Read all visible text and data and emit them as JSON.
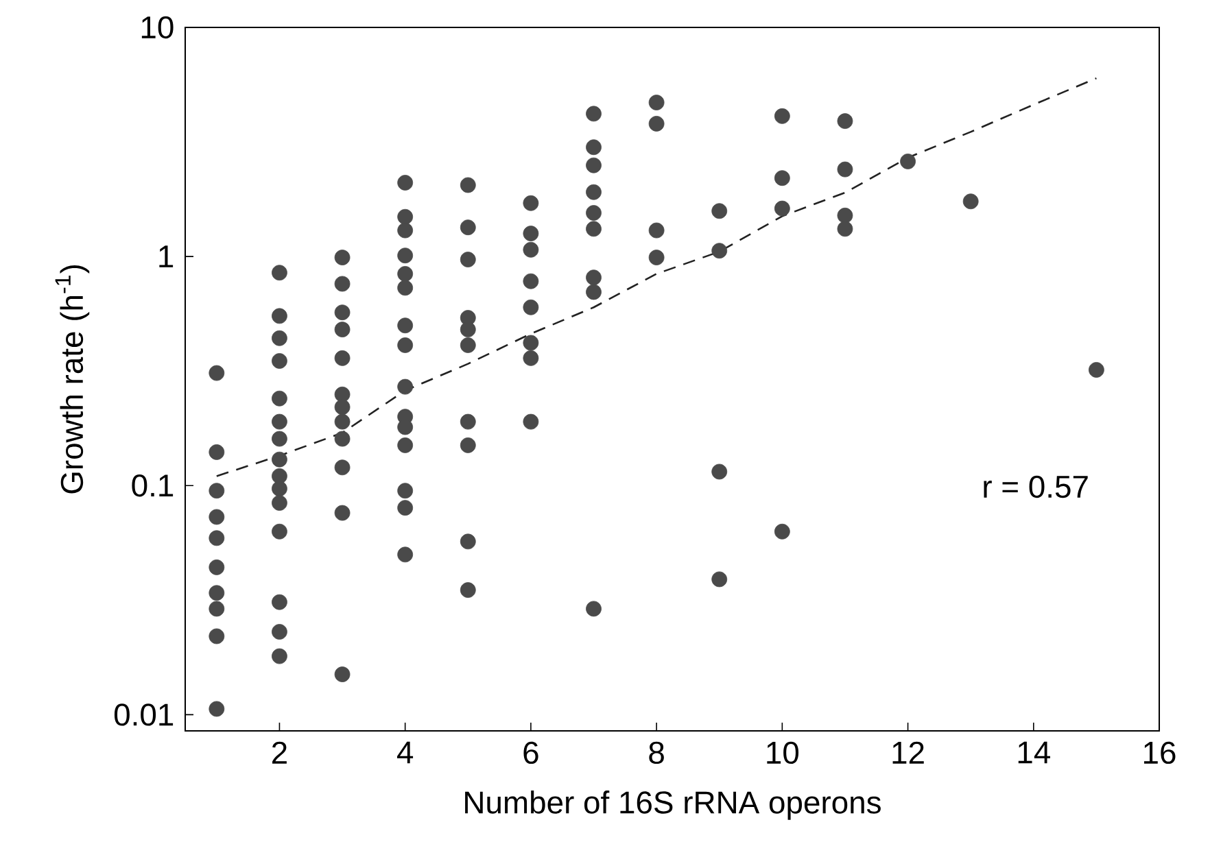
{
  "chart_data": {
    "type": "scatter",
    "xlabel": "Number of 16S rRNA operons",
    "ylabel": "Growth rate (h$^{-1}$)",
    "annotations": [
      "r = 0.57"
    ],
    "xlim": [
      0.5,
      16
    ],
    "ylim": [
      0.0085,
      10
    ],
    "xticks": [
      2,
      4,
      6,
      8,
      10,
      12,
      14,
      16
    ],
    "yticks": [
      0.01,
      0.1,
      1,
      10
    ],
    "log": "y",
    "grid": false,
    "series": [
      {
        "color": "#4a4a4a",
        "marker": "circle",
        "x": [
          1,
          1,
          1,
          1,
          1,
          1,
          1,
          1,
          1,
          1,
          2,
          2,
          2,
          2,
          2,
          2,
          2,
          2,
          2,
          2,
          2,
          2,
          2,
          2,
          2,
          3,
          3,
          3,
          3,
          3,
          3,
          3,
          3,
          3,
          3,
          3,
          3,
          4,
          4,
          4,
          4,
          4,
          4,
          4,
          4,
          4,
          4,
          4,
          4,
          4,
          4,
          4,
          5,
          5,
          5,
          5,
          5,
          5,
          5,
          5,
          5,
          5,
          6,
          6,
          6,
          6,
          6,
          6,
          6,
          6,
          7,
          7,
          7,
          7,
          7,
          7,
          7,
          7,
          7,
          8,
          8,
          8,
          8,
          9,
          9,
          9,
          9,
          10,
          10,
          10,
          10,
          11,
          11,
          11,
          11,
          12,
          13,
          15
        ],
        "values": [
          0.31,
          0.14,
          0.095,
          0.073,
          0.059,
          0.044,
          0.034,
          0.029,
          0.022,
          0.0106,
          0.85,
          0.55,
          0.44,
          0.35,
          0.24,
          0.19,
          0.16,
          0.13,
          0.11,
          0.097,
          0.084,
          0.063,
          0.031,
          0.023,
          0.018,
          0.99,
          0.76,
          0.57,
          0.48,
          0.36,
          0.25,
          0.22,
          0.19,
          0.16,
          0.12,
          0.076,
          0.015,
          2.1,
          1.49,
          1.3,
          1.01,
          0.84,
          0.73,
          0.5,
          0.41,
          0.27,
          0.2,
          0.18,
          0.15,
          0.095,
          0.08,
          0.05,
          2.05,
          1.34,
          0.97,
          0.54,
          0.48,
          0.41,
          0.19,
          0.15,
          0.057,
          0.035,
          1.71,
          1.26,
          1.07,
          0.78,
          0.6,
          0.42,
          0.36,
          0.19,
          4.2,
          3.0,
          2.5,
          1.91,
          1.55,
          1.32,
          0.81,
          0.7,
          0.029,
          4.7,
          3.8,
          1.3,
          0.99,
          1.58,
          1.06,
          0.115,
          0.039,
          4.1,
          2.2,
          1.62,
          0.063,
          3.9,
          2.4,
          1.51,
          1.32,
          2.6,
          1.74,
          0.32
        ]
      },
      {
        "type": "line",
        "color": "#222222",
        "marker": "none",
        "line_style": "dashed",
        "x": [
          1,
          2,
          3,
          4,
          5,
          6,
          7,
          8,
          9,
          10,
          11,
          12,
          13,
          14,
          15
        ],
        "values": [
          0.11,
          0.135,
          0.17,
          0.26,
          0.34,
          0.46,
          0.6,
          0.84,
          1.05,
          1.5,
          1.9,
          2.7,
          3.5,
          4.6,
          6.0
        ]
      }
    ]
  }
}
